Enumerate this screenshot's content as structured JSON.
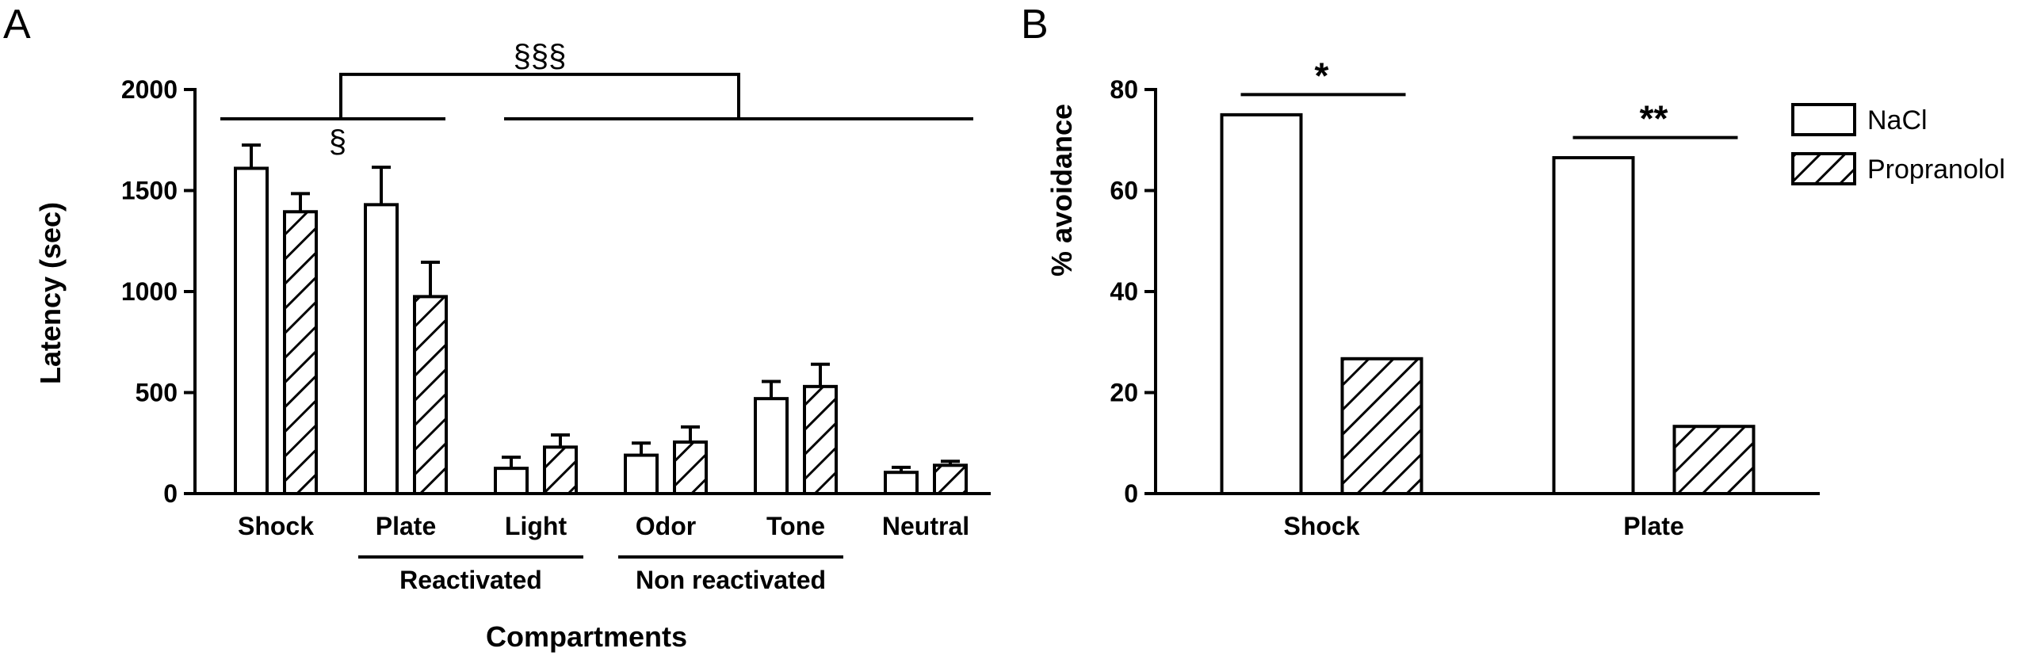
{
  "chart_data": [
    {
      "panel": "A",
      "type": "bar",
      "ylabel": "Latency (sec)",
      "xlabel": "Compartments",
      "ylim": [
        0,
        2000
      ],
      "yticks": [
        0,
        500,
        1000,
        1500,
        2000
      ],
      "categories": [
        "Shock",
        "Plate",
        "Light",
        "Odor",
        "Tone",
        "Neutral"
      ],
      "series": [
        {
          "name": "NaCl",
          "fill": "white",
          "values": [
            1610,
            1430,
            125,
            190,
            470,
            105
          ],
          "errors": [
            115,
            185,
            55,
            60,
            85,
            25
          ]
        },
        {
          "name": "Propranolol",
          "fill": "hatched",
          "values": [
            1395,
            975,
            230,
            255,
            530,
            140
          ],
          "errors": [
            90,
            170,
            60,
            75,
            110,
            20
          ]
        }
      ],
      "groups": [
        {
          "label": "Reactivated",
          "categories": [
            "Plate",
            "Light"
          ]
        },
        {
          "label": "Non reactivated",
          "categories": [
            "Odor",
            "Tone"
          ]
        }
      ],
      "annotations": [
        {
          "symbol": "§",
          "between": [
            "Shock",
            "Plate"
          ]
        },
        {
          "symbol": "§§§",
          "between": [
            "Shock–Plate",
            "Light–Neutral"
          ]
        }
      ]
    },
    {
      "panel": "B",
      "type": "bar",
      "ylabel": "% avoidance",
      "ylim": [
        0,
        80
      ],
      "yticks": [
        0,
        20,
        40,
        60,
        80
      ],
      "categories": [
        "Shock",
        "Plate"
      ],
      "series": [
        {
          "name": "NaCl",
          "fill": "white",
          "values": [
            75,
            66.5
          ]
        },
        {
          "name": "Propranolol",
          "fill": "hatched",
          "values": [
            26.7,
            13.3
          ]
        }
      ],
      "annotations": [
        {
          "symbol": "*",
          "category": "Shock"
        },
        {
          "symbol": "**",
          "category": "Plate"
        }
      ],
      "legend": {
        "placement": "top-right",
        "entries": [
          "NaCl",
          "Propranolol"
        ]
      }
    }
  ]
}
